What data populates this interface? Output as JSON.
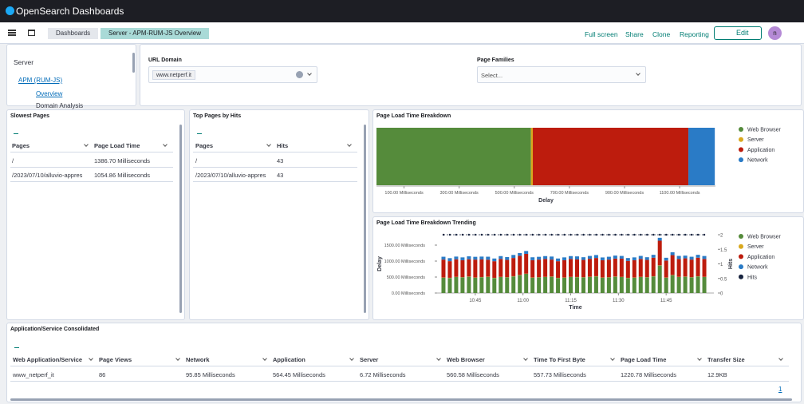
{
  "header": {
    "brand": "OpenSearch Dashboards"
  },
  "nav": {
    "breadcrumbs": [
      "Dashboards",
      "Server - APM-RUM-JS Overview"
    ],
    "actions": [
      "Full screen",
      "Share",
      "Clone",
      "Reporting"
    ],
    "edit": "Edit",
    "avatar": "n"
  },
  "nav_panel": {
    "title": "Server",
    "items": [
      "APM (RUM-JS)",
      "Overview",
      "Domain Analysis"
    ]
  },
  "controls": {
    "url_domain": {
      "label": "URL Domain",
      "selected": "www.netperf.it"
    },
    "page_families": {
      "label": "Page Families",
      "placeholder": "Select..."
    }
  },
  "slowest_pages": {
    "title": "Slowest Pages",
    "columns": [
      "Pages",
      "Page Load Time"
    ],
    "rows": [
      [
        "/",
        "1386.70 Milliseconds"
      ],
      [
        "/2023/07/10/alluvio-appres",
        "1054.86 Milliseconds"
      ]
    ]
  },
  "top_pages": {
    "title": "Top Pages by Hits",
    "columns": [
      "Pages",
      "Hits"
    ],
    "rows": [
      [
        "/",
        43
      ],
      [
        "/2023/07/10/alluvio-appres",
        43
      ]
    ]
  },
  "breakdown": {
    "type": "bar",
    "orientation": "horizontal",
    "stacked": true,
    "title": "Page Load Time Breakdown",
    "xlabel": "Delay",
    "series": [
      {
        "name": "Web Browser",
        "color": "#558b3b",
        "values": [
          560.58
        ]
      },
      {
        "name": "Server",
        "color": "#d9a81e",
        "values": [
          6.72
        ]
      },
      {
        "name": "Application",
        "color": "#bd1c0d",
        "values": [
          564.45
        ]
      },
      {
        "name": "Network",
        "color": "#2a7bc6",
        "values": [
          95.85
        ]
      }
    ],
    "xlim": [
      0,
      1230
    ],
    "xticks": [
      {
        "value": 100,
        "label": "100.00 Milliseconds"
      },
      {
        "value": 300,
        "label": "300.00 Milliseconds"
      },
      {
        "value": 500,
        "label": "500.00 Milliseconds"
      },
      {
        "value": 700,
        "label": "700.00 Milliseconds"
      },
      {
        "value": 900,
        "label": "900.00 Milliseconds"
      },
      {
        "value": 1100,
        "label": "1100.00 Milliseconds"
      }
    ]
  },
  "trending": {
    "type": "bar",
    "stacked": true,
    "title": "Page Load Time Breakdown Trending",
    "xlabel": "Time",
    "ylabel": "Delay",
    "y2label": "Hits",
    "x": [
      "10:35",
      "10:37",
      "10:39",
      "10:41",
      "10:43",
      "10:45",
      "10:47",
      "10:49",
      "10:51",
      "10:53",
      "10:55",
      "10:57",
      "10:59",
      "11:01",
      "11:03",
      "11:05",
      "11:07",
      "11:09",
      "11:11",
      "11:13",
      "11:15",
      "11:17",
      "11:19",
      "11:21",
      "11:23",
      "11:25",
      "11:27",
      "11:29",
      "11:31",
      "11:33",
      "11:35",
      "11:37",
      "11:39",
      "11:41",
      "11:43",
      "11:45",
      "11:47",
      "11:49",
      "11:51",
      "11:53",
      "11:55",
      "11:57"
    ],
    "xlim": [
      "10:33",
      "12:00"
    ],
    "xticks": [
      "10:45",
      "11:00",
      "11:15",
      "11:30",
      "11:45"
    ],
    "ylim": [
      0,
      1825
    ],
    "yticks": [
      {
        "value": 0,
        "label": "0.00 Milliseconds"
      },
      {
        "value": 500,
        "label": "500.00 Milliseconds"
      },
      {
        "value": 1000,
        "label": "1000.00 Milliseconds"
      },
      {
        "value": 1500,
        "label": "1500.00 Milliseconds"
      }
    ],
    "y2lim": [
      0,
      2
    ],
    "y2ticks": [
      0,
      0.5,
      1,
      1.5,
      2
    ],
    "series": [
      {
        "name": "Web Browser",
        "color": "#558b3b",
        "values": [
          480,
          470,
          500,
          490,
          510,
          480,
          495,
          505,
          470,
          500,
          490,
          520,
          560,
          600,
          480,
          490,
          500,
          510,
          470,
          480,
          500,
          495,
          490,
          505,
          520,
          480,
          490,
          510,
          500,
          470,
          480,
          500,
          490,
          520,
          860,
          480,
          560,
          500,
          510,
          490,
          520,
          500
        ]
      },
      {
        "name": "Server",
        "color": "#d9a81e",
        "values": [
          6,
          7,
          6,
          6,
          7,
          6,
          6,
          7,
          6,
          6,
          6,
          7,
          6,
          6,
          7,
          6,
          6,
          7,
          6,
          6,
          6,
          7,
          6,
          6,
          7,
          6,
          6,
          7,
          6,
          6,
          6,
          7,
          6,
          6,
          7,
          6,
          6,
          7,
          6,
          6,
          6,
          7
        ]
      },
      {
        "name": "Application",
        "color": "#bd1c0d",
        "values": [
          560,
          520,
          550,
          530,
          540,
          560,
          550,
          530,
          520,
          560,
          540,
          570,
          600,
          620,
          540,
          550,
          560,
          530,
          520,
          540,
          560,
          550,
          540,
          560,
          570,
          540,
          550,
          560,
          570,
          530,
          540,
          560,
          540,
          580,
          770,
          530,
          620,
          560,
          570,
          550,
          580,
          560
        ]
      },
      {
        "name": "Network",
        "color": "#2a7bc6",
        "values": [
          90,
          95,
          85,
          90,
          92,
          88,
          90,
          95,
          85,
          90,
          90,
          95,
          85,
          90,
          92,
          88,
          90,
          95,
          85,
          90,
          90,
          95,
          85,
          90,
          92,
          88,
          90,
          95,
          85,
          90,
          90,
          95,
          85,
          90,
          92,
          88,
          90,
          95,
          85,
          90,
          90,
          92
        ]
      },
      {
        "name": "Hits",
        "color": "#17233f",
        "type": "line",
        "axis": "y2",
        "values": [
          2,
          2,
          2,
          2,
          2,
          2,
          2,
          2,
          2,
          2,
          2,
          2,
          2,
          2,
          2,
          2,
          2,
          2,
          2,
          2,
          2,
          2,
          2,
          2,
          2,
          2,
          2,
          2,
          2,
          2,
          2,
          2,
          2,
          2,
          2,
          2,
          2,
          2,
          2,
          2,
          2,
          2
        ]
      }
    ]
  },
  "consolidated": {
    "title": "Application/Service Consolidated",
    "columns": [
      "Web Application/Service",
      "Page Views",
      "Network",
      "Application",
      "Server",
      "Web Browser",
      "Time To First Byte",
      "Page Load Time",
      "Transfer Size"
    ],
    "rows": [
      [
        "www_netperf_it",
        86,
        "95.85 Milliseconds",
        "564.45 Milliseconds",
        "6.72 Milliseconds",
        "560.58 Milliseconds",
        "557.73 Milliseconds",
        "1220.78 Milliseconds",
        "12.9KB"
      ]
    ],
    "pagination": {
      "page": "1"
    }
  }
}
